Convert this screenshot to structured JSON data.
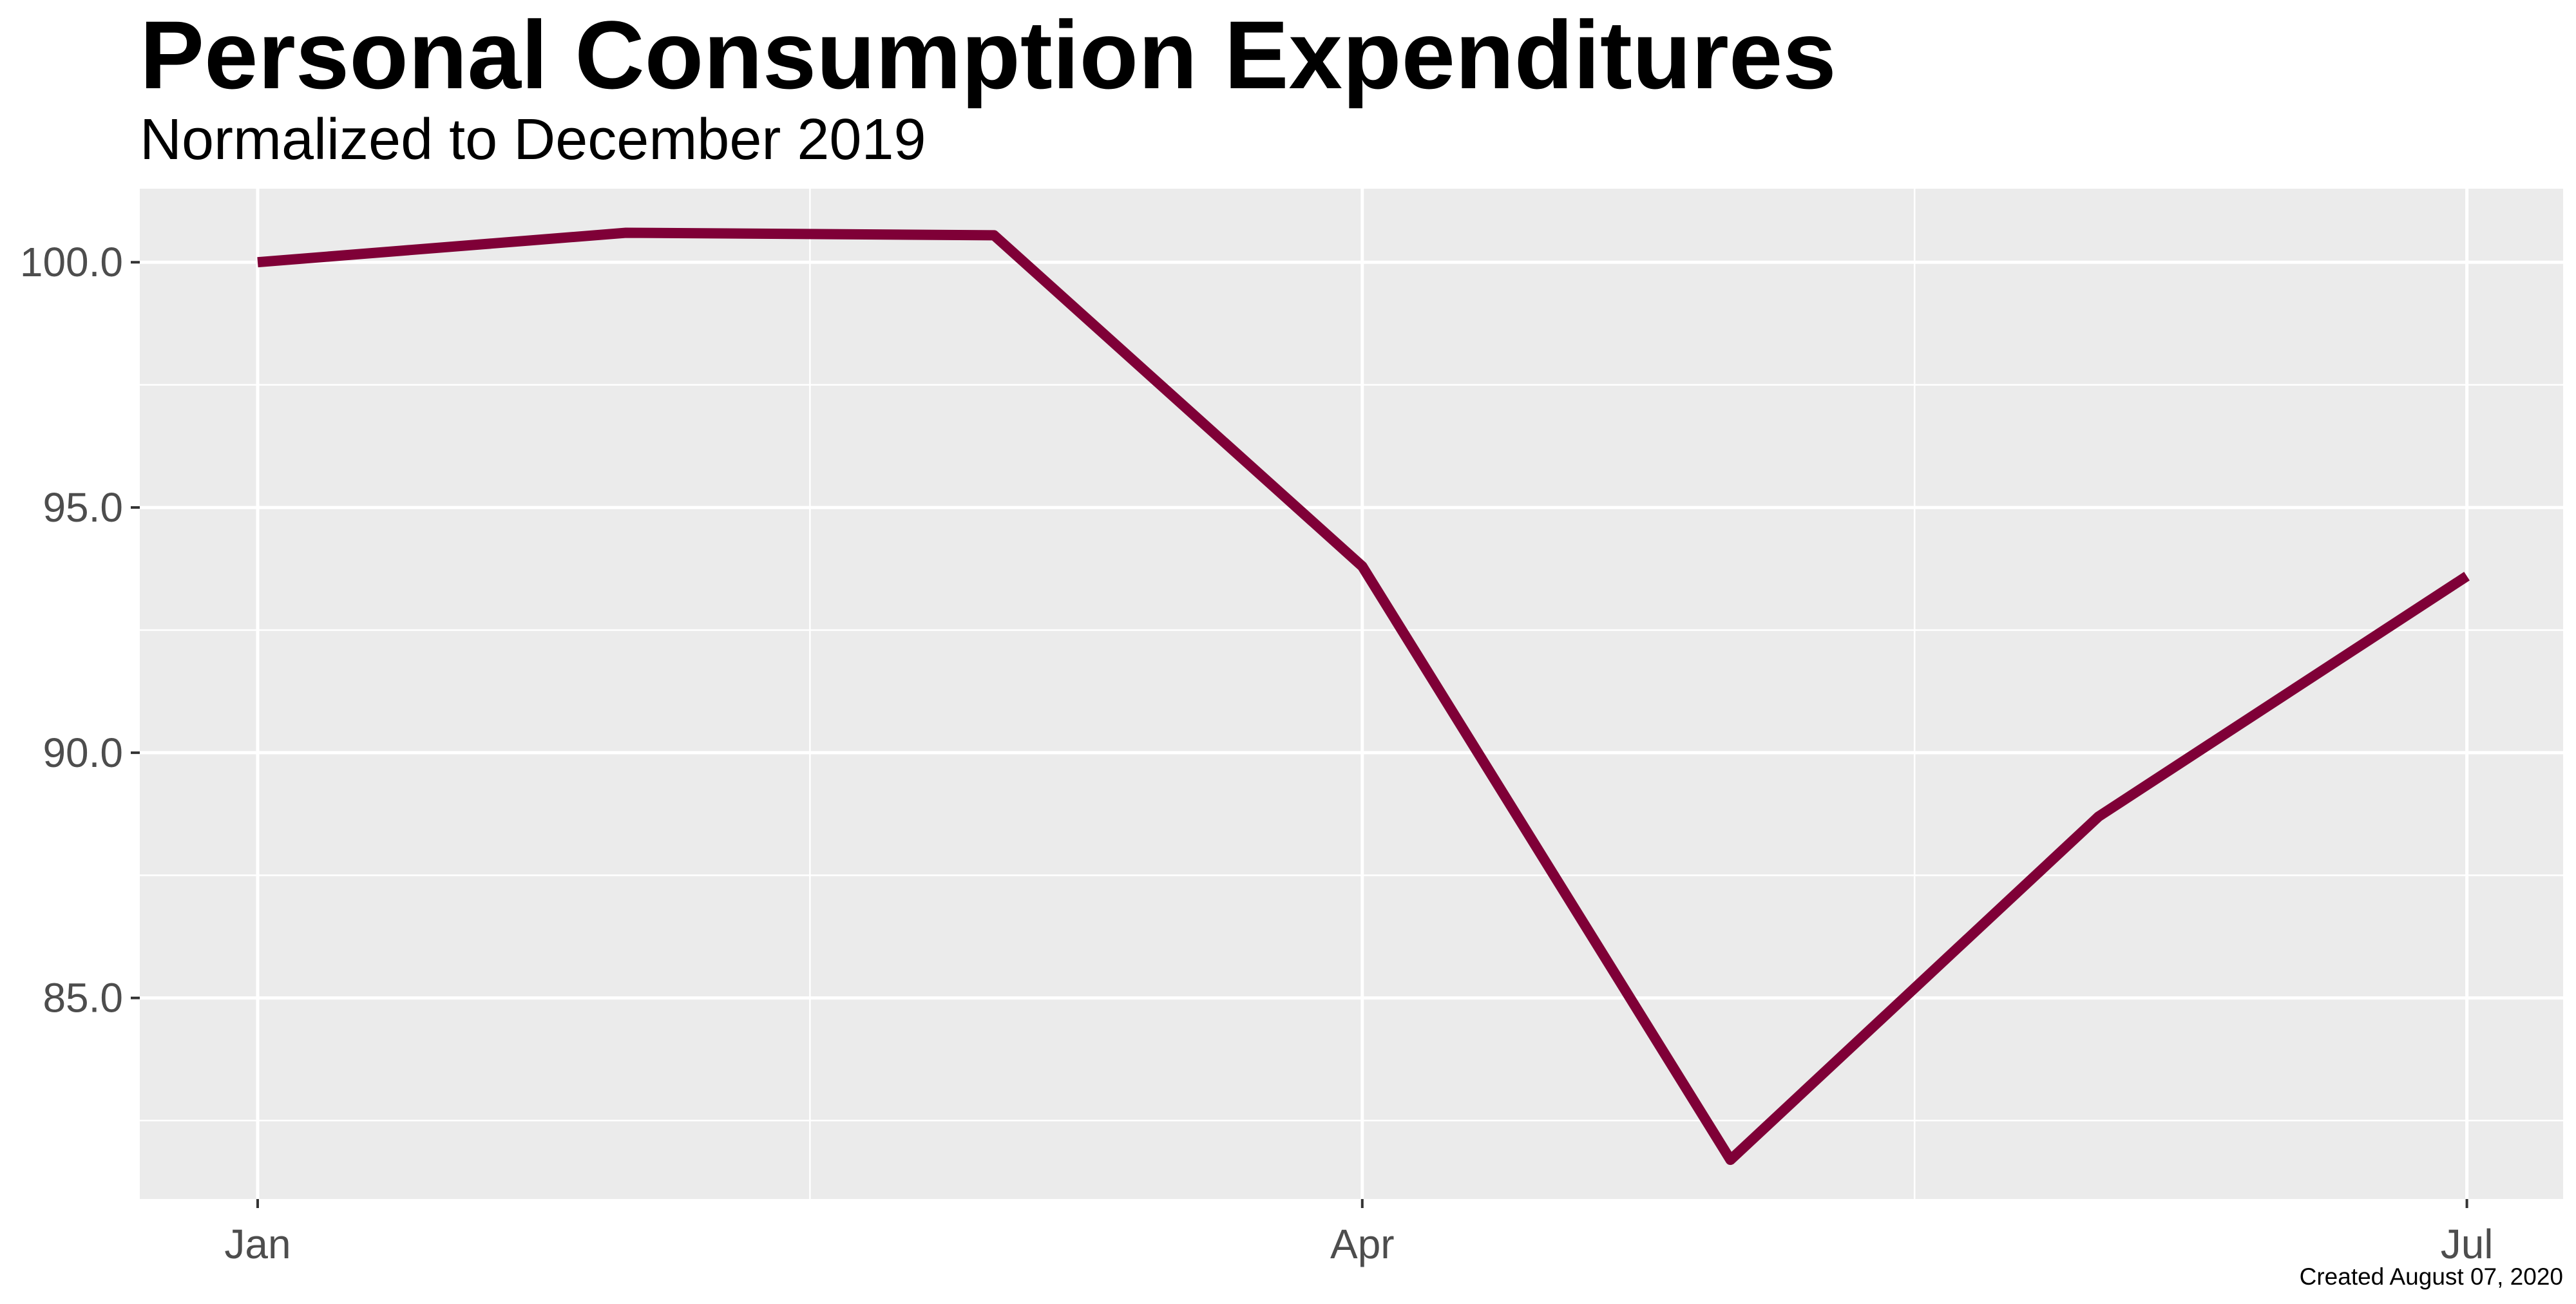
{
  "chart_data": {
    "type": "line",
    "title": "Personal Consumption Expenditures",
    "subtitle": "Normalized to December 2019",
    "caption": "Created August 07, 2020",
    "xlabel": "",
    "ylabel": "",
    "x": [
      "2020-01",
      "2020-02",
      "2020-03",
      "2020-04",
      "2020-05",
      "2020-06",
      "2020-07"
    ],
    "x_ticks": [
      {
        "label": "Jan",
        "x": "2020-01"
      },
      {
        "label": "Apr",
        "x": "2020-04"
      },
      {
        "label": "Jul",
        "x": "2020-07"
      }
    ],
    "y_ticks": [
      "85.0",
      "90.0",
      "95.0",
      "100.0"
    ],
    "series": [
      {
        "values": [
          100.0,
          100.6,
          100.55,
          93.8,
          81.7,
          88.7,
          93.6
        ],
        "color": "#7f0037"
      }
    ],
    "ylim": [
      80.9,
      101.5
    ],
    "panel_background": "#ebebeb",
    "grid": true,
    "legend": "none"
  }
}
